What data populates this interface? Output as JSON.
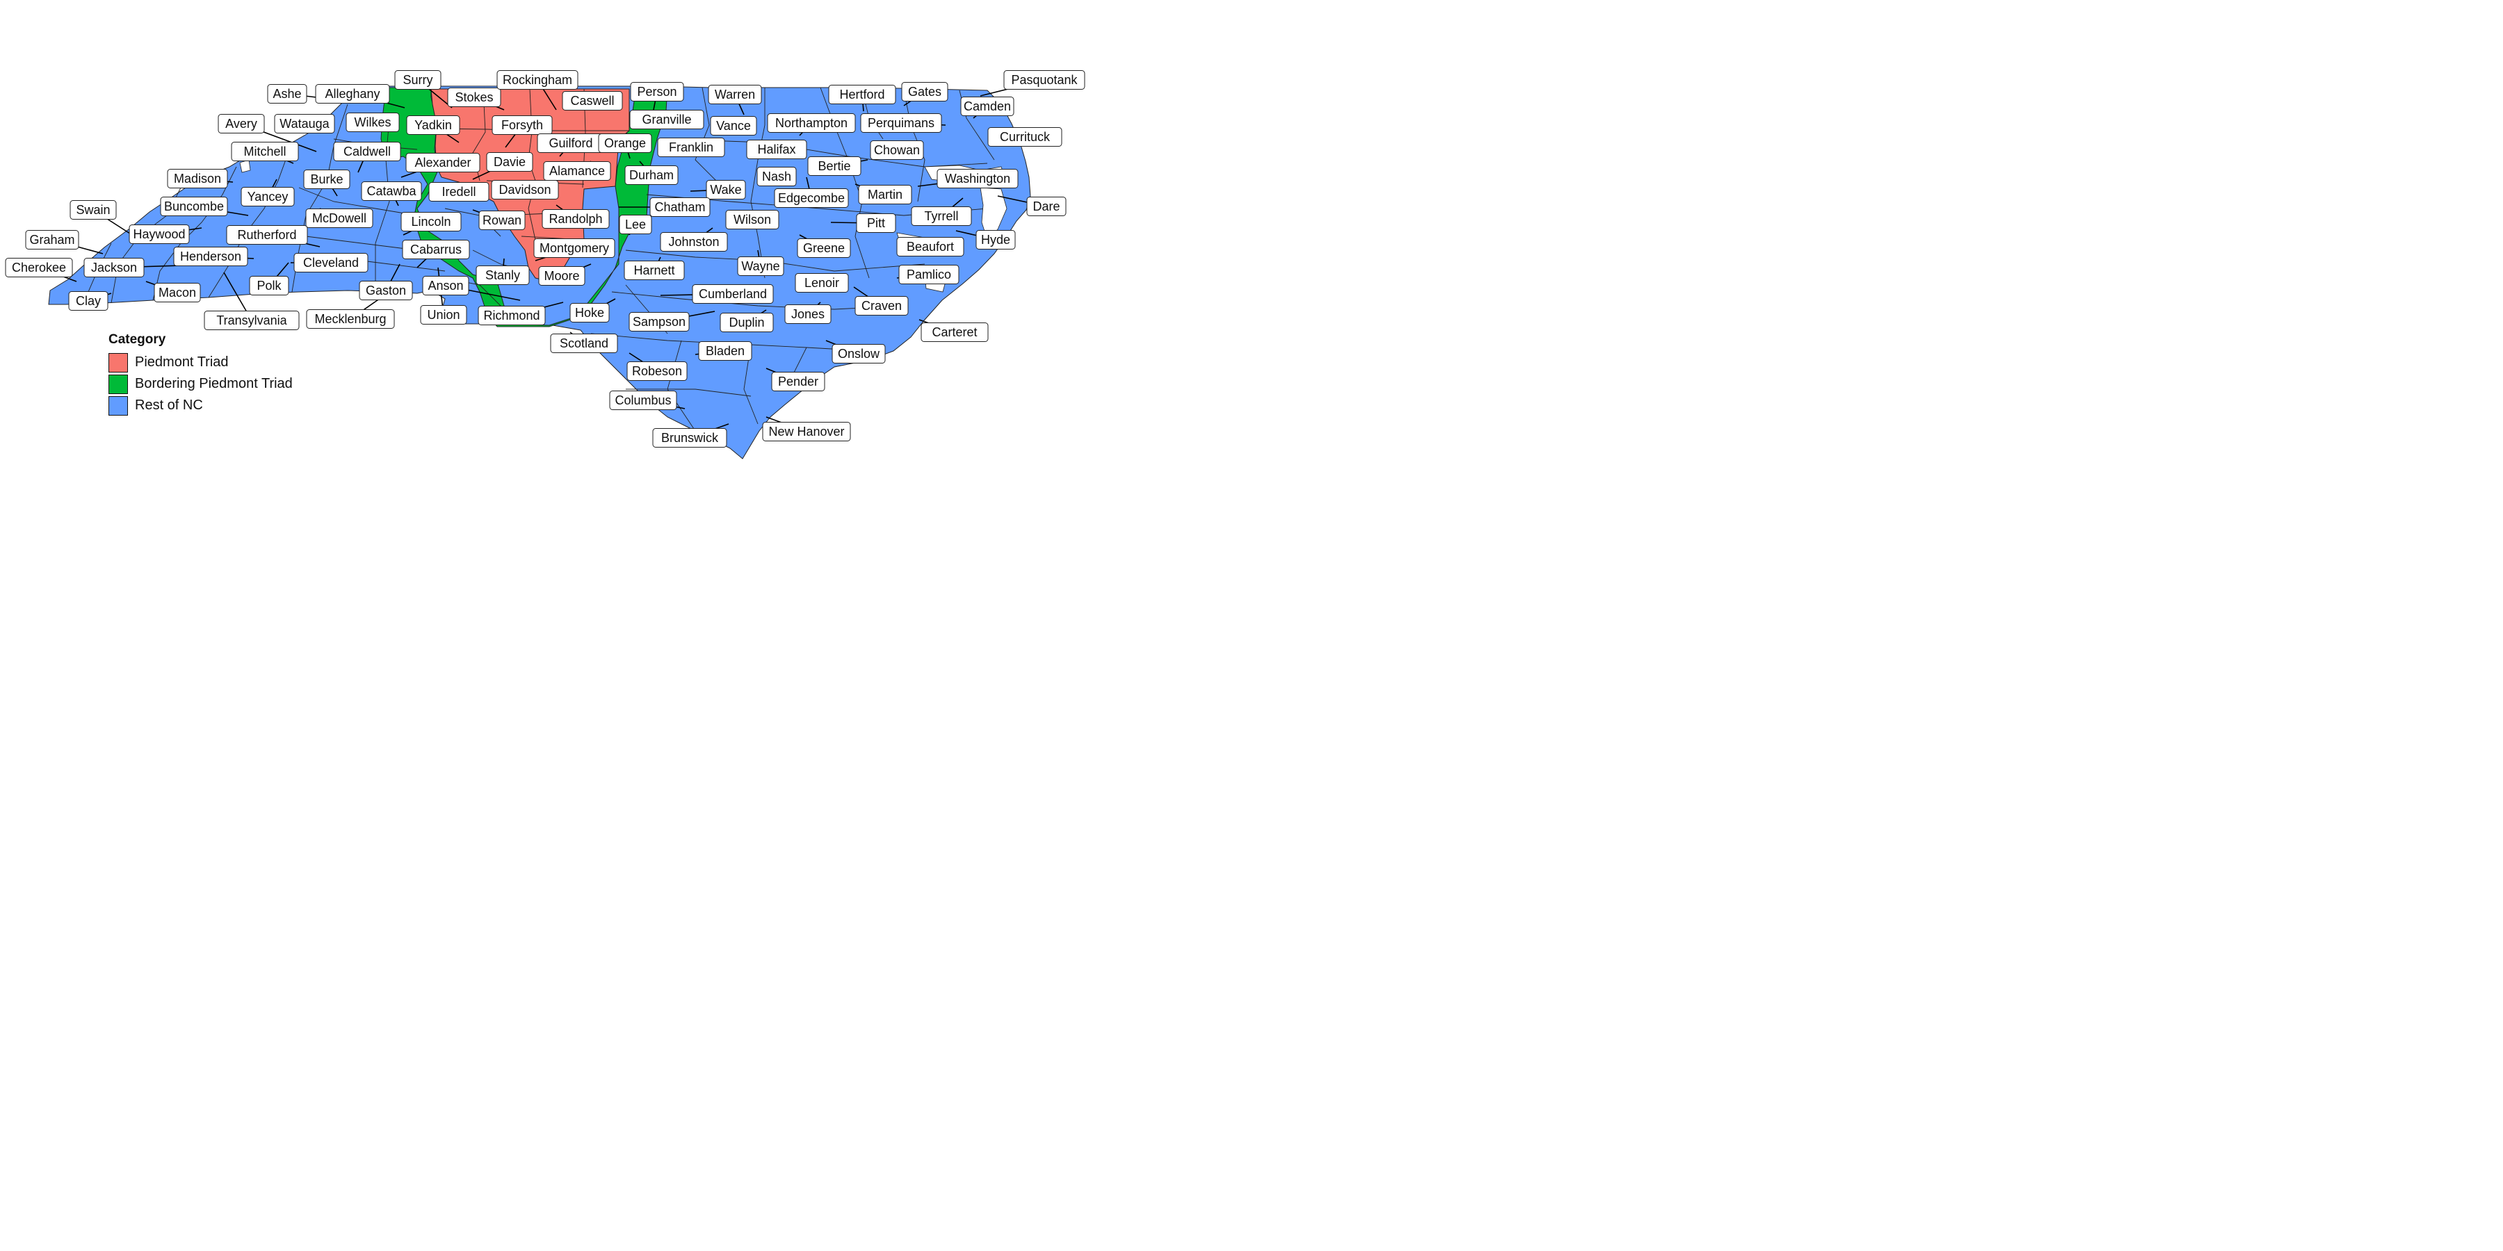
{
  "legend": {
    "title": "Category",
    "items": [
      {
        "label": "Piedmont Triad",
        "color": "#F8766D"
      },
      {
        "label": "Bordering Piedmont Triad",
        "color": "#00BA38"
      },
      {
        "label": "Rest of NC",
        "color": "#619CFF"
      }
    ]
  },
  "counties": [
    "Ashe",
    "Alleghany",
    "Surry",
    "Stokes",
    "Rockingham",
    "Caswell",
    "Person",
    "Warren",
    "Hertford",
    "Gates",
    "Pasquotank",
    "Camden",
    "Currituck",
    "Avery",
    "Watauga",
    "Wilkes",
    "Yadkin",
    "Forsyth",
    "Granville",
    "Vance",
    "Northampton",
    "Perquimans",
    "Mitchell",
    "Caldwell",
    "Guilford",
    "Orange",
    "Franklin",
    "Halifax",
    "Chowan",
    "Alexander",
    "Davie",
    "Alamance",
    "Durham",
    "Bertie",
    "Washington",
    "Madison",
    "Burke",
    "Catawba",
    "Iredell",
    "Davidson",
    "Wake",
    "Nash",
    "Martin",
    "Dare",
    "Yancey",
    "Buncombe",
    "Edgecombe",
    "Chatham",
    "Swain",
    "McDowell",
    "Lincoln",
    "Rowan",
    "Randolph",
    "Lee",
    "Wilson",
    "Pitt",
    "Tyrrell",
    "Haywood",
    "Rutherford",
    "Johnston",
    "Hyde",
    "Graham",
    "Beaufort",
    "Cabarrus",
    "Montgomery",
    "Greene",
    "Henderson",
    "Cherokee",
    "Jackson",
    "Cleveland",
    "Wayne",
    "Stanly",
    "Moore",
    "Harnett",
    "Lenoir",
    "Pamlico",
    "Polk",
    "Gaston",
    "Anson",
    "Macon",
    "Cumberland",
    "Clay",
    "Craven",
    "Union",
    "Richmond",
    "Hoke",
    "Jones",
    "Transylvania",
    "Mecklenburg",
    "Sampson",
    "Duplin",
    "Carteret",
    "Scotland",
    "Bladen",
    "Onslow",
    "Robeson",
    "Pender",
    "Columbus",
    "New Hanover",
    "Brunswick"
  ],
  "categories": {
    "piedmont_triad": [
      "Surry",
      "Stokes",
      "Rockingham",
      "Caswell",
      "Yadkin",
      "Forsyth",
      "Guilford",
      "Alamance",
      "Davie",
      "Davidson",
      "Randolph",
      "Montgomery"
    ],
    "bordering": [
      "Alleghany",
      "Wilkes",
      "Person",
      "Granville",
      "Alexander",
      "Orange",
      "Durham",
      "Iredell",
      "Rowan",
      "Chatham",
      "Stanly",
      "Moore",
      "Anson",
      "Richmond"
    ]
  }
}
